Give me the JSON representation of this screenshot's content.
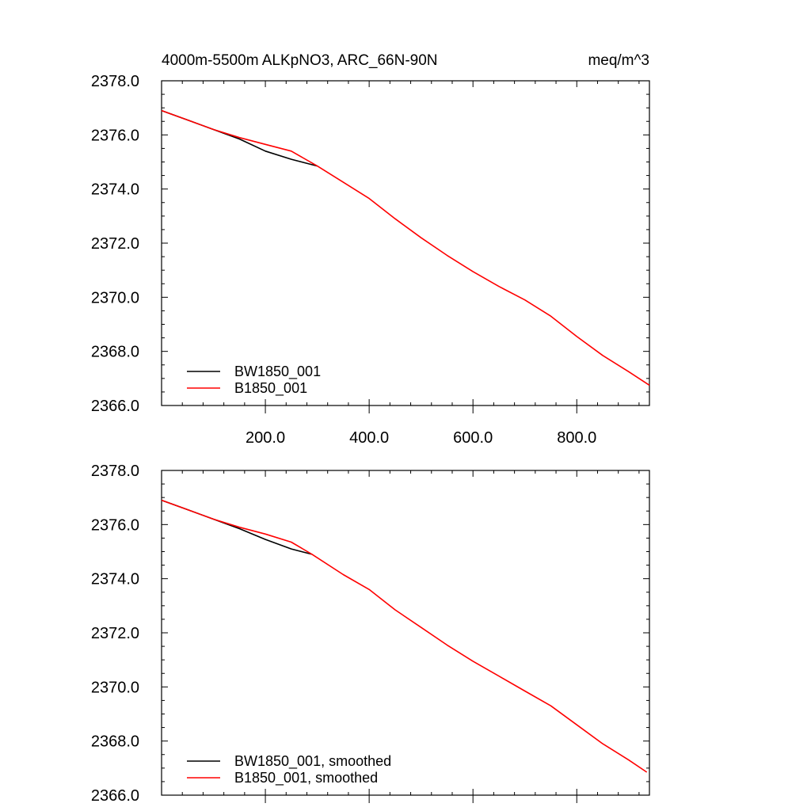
{
  "chart_data": [
    {
      "type": "line",
      "title": "4000m-5500m ALKpNO3, ARC_66N-90N",
      "units": "meq/m^3",
      "xlim": [
        0,
        940
      ],
      "ylim": [
        2366.0,
        2378.0
      ],
      "x_ticks": [
        "200.0",
        "400.0",
        "600.0",
        "800.0"
      ],
      "y_ticks": [
        "2366.0",
        "2368.0",
        "2370.0",
        "2372.0",
        "2374.0",
        "2376.0",
        "2378.0"
      ],
      "series": [
        {
          "name": "BW1850_001",
          "color": "#000000",
          "x": [
            0,
            50,
            100,
            150,
            200,
            250,
            300
          ],
          "y": [
            2376.9,
            2376.55,
            2376.2,
            2375.85,
            2375.4,
            2375.1,
            2374.85
          ]
        },
        {
          "name": "B1850_001",
          "color": "#ff0000",
          "x": [
            0,
            50,
            100,
            150,
            200,
            250,
            300,
            350,
            400,
            450,
            500,
            550,
            600,
            650,
            700,
            750,
            800,
            850,
            900,
            940
          ],
          "y": [
            2376.9,
            2376.55,
            2376.2,
            2375.9,
            2375.65,
            2375.4,
            2374.85,
            2374.25,
            2373.65,
            2372.9,
            2372.2,
            2371.55,
            2370.95,
            2370.4,
            2369.9,
            2369.3,
            2368.55,
            2367.85,
            2367.25,
            2366.75
          ]
        }
      ]
    },
    {
      "type": "line",
      "xlim": [
        0,
        940
      ],
      "ylim": [
        2366.0,
        2378.0
      ],
      "y_ticks": [
        "2366.0",
        "2368.0",
        "2370.0",
        "2372.0",
        "2374.0",
        "2376.0",
        "2378.0"
      ],
      "series": [
        {
          "name": "BW1850_001, smoothed",
          "color": "#000000",
          "x": [
            0,
            50,
            100,
            150,
            200,
            250,
            290
          ],
          "y": [
            2376.9,
            2376.55,
            2376.2,
            2375.85,
            2375.45,
            2375.1,
            2374.9
          ]
        },
        {
          "name": "B1850_001, smoothed",
          "color": "#ff0000",
          "x": [
            0,
            50,
            100,
            150,
            200,
            250,
            290,
            350,
            400,
            450,
            500,
            550,
            600,
            650,
            700,
            750,
            800,
            850,
            900,
            935
          ],
          "y": [
            2376.9,
            2376.55,
            2376.2,
            2375.9,
            2375.65,
            2375.35,
            2374.9,
            2374.15,
            2373.6,
            2372.85,
            2372.2,
            2371.55,
            2370.95,
            2370.4,
            2369.85,
            2369.3,
            2368.6,
            2367.9,
            2367.3,
            2366.85
          ]
        }
      ]
    }
  ]
}
